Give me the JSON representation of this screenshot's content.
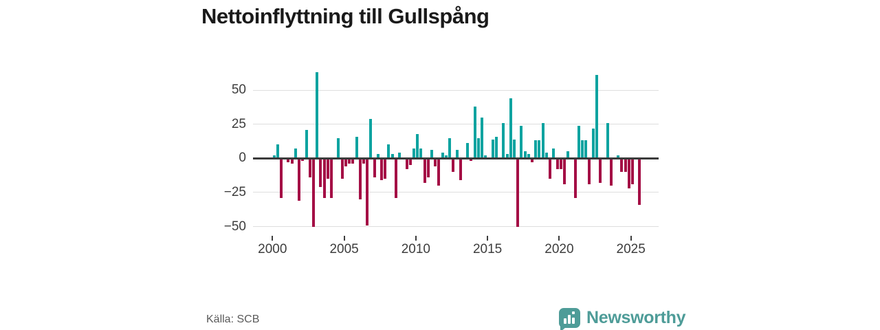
{
  "title": "Nettoinflyttning till Gullspång",
  "source": "Källa: SCB",
  "logo": {
    "text": "Newsworthy"
  },
  "chart_data": {
    "type": "bar",
    "title": "Nettoinflyttning till Gullspång",
    "xlabel": "",
    "ylabel": "",
    "frequency": "quarterly",
    "ylim": [
      -55,
      66
    ],
    "grid": true,
    "legend": "none",
    "yticks": [
      50,
      25,
      0,
      -25,
      -50
    ],
    "ytick_labels": [
      "50",
      "25",
      "0",
      "−25",
      "−50"
    ],
    "xticks": [
      2000,
      2005,
      2010,
      2015,
      2020,
      2025
    ],
    "xtick_labels": [
      "2000",
      "2005",
      "2010",
      "2015",
      "2020",
      "2025"
    ],
    "colors": {
      "positive": "#0ba3a0",
      "negative": "#a40d45",
      "zero_axis": "#3b3b3b",
      "gridline": "#dedede"
    },
    "categories": [
      "2000Q1",
      "2000Q2",
      "2000Q3",
      "2000Q4",
      "2001Q1",
      "2001Q2",
      "2001Q3",
      "2001Q4",
      "2002Q1",
      "2002Q2",
      "2002Q3",
      "2002Q4",
      "2003Q1",
      "2003Q2",
      "2003Q3",
      "2003Q4",
      "2004Q1",
      "2004Q2",
      "2004Q3",
      "2004Q4",
      "2005Q1",
      "2005Q2",
      "2005Q3",
      "2005Q4",
      "2006Q1",
      "2006Q2",
      "2006Q3",
      "2006Q4",
      "2007Q1",
      "2007Q2",
      "2007Q3",
      "2007Q4",
      "2008Q1",
      "2008Q2",
      "2008Q3",
      "2008Q4",
      "2009Q1",
      "2009Q2",
      "2009Q3",
      "2009Q4",
      "2010Q1",
      "2010Q2",
      "2010Q3",
      "2010Q4",
      "2011Q1",
      "2011Q2",
      "2011Q3",
      "2011Q4",
      "2012Q1",
      "2012Q2",
      "2012Q3",
      "2012Q4",
      "2013Q1",
      "2013Q2",
      "2013Q3",
      "2013Q4",
      "2014Q1",
      "2014Q2",
      "2014Q3",
      "2014Q4",
      "2015Q1",
      "2015Q2",
      "2015Q3",
      "2015Q4",
      "2016Q1",
      "2016Q2",
      "2016Q3",
      "2016Q4",
      "2017Q1",
      "2017Q2",
      "2017Q3",
      "2017Q4",
      "2018Q1",
      "2018Q2",
      "2018Q3",
      "2018Q4",
      "2019Q1",
      "2019Q2",
      "2019Q3",
      "2019Q4",
      "2020Q1",
      "2020Q2",
      "2020Q3",
      "2020Q4",
      "2021Q1",
      "2021Q2",
      "2021Q3",
      "2021Q4",
      "2022Q1",
      "2022Q2",
      "2022Q3",
      "2022Q4",
      "2023Q1",
      "2023Q2",
      "2023Q3",
      "2023Q4",
      "2024Q1",
      "2024Q2",
      "2024Q3",
      "2024Q4",
      "2025Q1",
      "2025Q2",
      "2025Q3"
    ],
    "values": [
      2,
      10,
      -29,
      0,
      -3,
      -4,
      7,
      -31,
      -2,
      21,
      -14,
      -50,
      63,
      -21,
      -29,
      -15,
      -29,
      0,
      15,
      -15,
      -6,
      -4,
      -4,
      16,
      -30,
      -4,
      -49,
      29,
      -14,
      3,
      -16,
      -15,
      10,
      3,
      -29,
      4,
      0,
      -8,
      -5,
      7,
      18,
      7,
      -18,
      -14,
      6,
      -6,
      -20,
      4,
      2,
      15,
      -10,
      6,
      -16,
      0,
      11,
      -2,
      38,
      15,
      30,
      2,
      -1,
      14,
      16,
      0,
      26,
      3,
      44,
      14,
      -50,
      24,
      5,
      3,
      -3,
      13,
      13,
      26,
      4,
      -15,
      7,
      -8,
      -8,
      -19,
      5,
      0,
      -29,
      24,
      13,
      13,
      -19,
      22,
      61,
      -18,
      0,
      26,
      -20,
      0,
      2,
      -10,
      -10,
      -22,
      -19,
      0,
      -34
    ]
  }
}
